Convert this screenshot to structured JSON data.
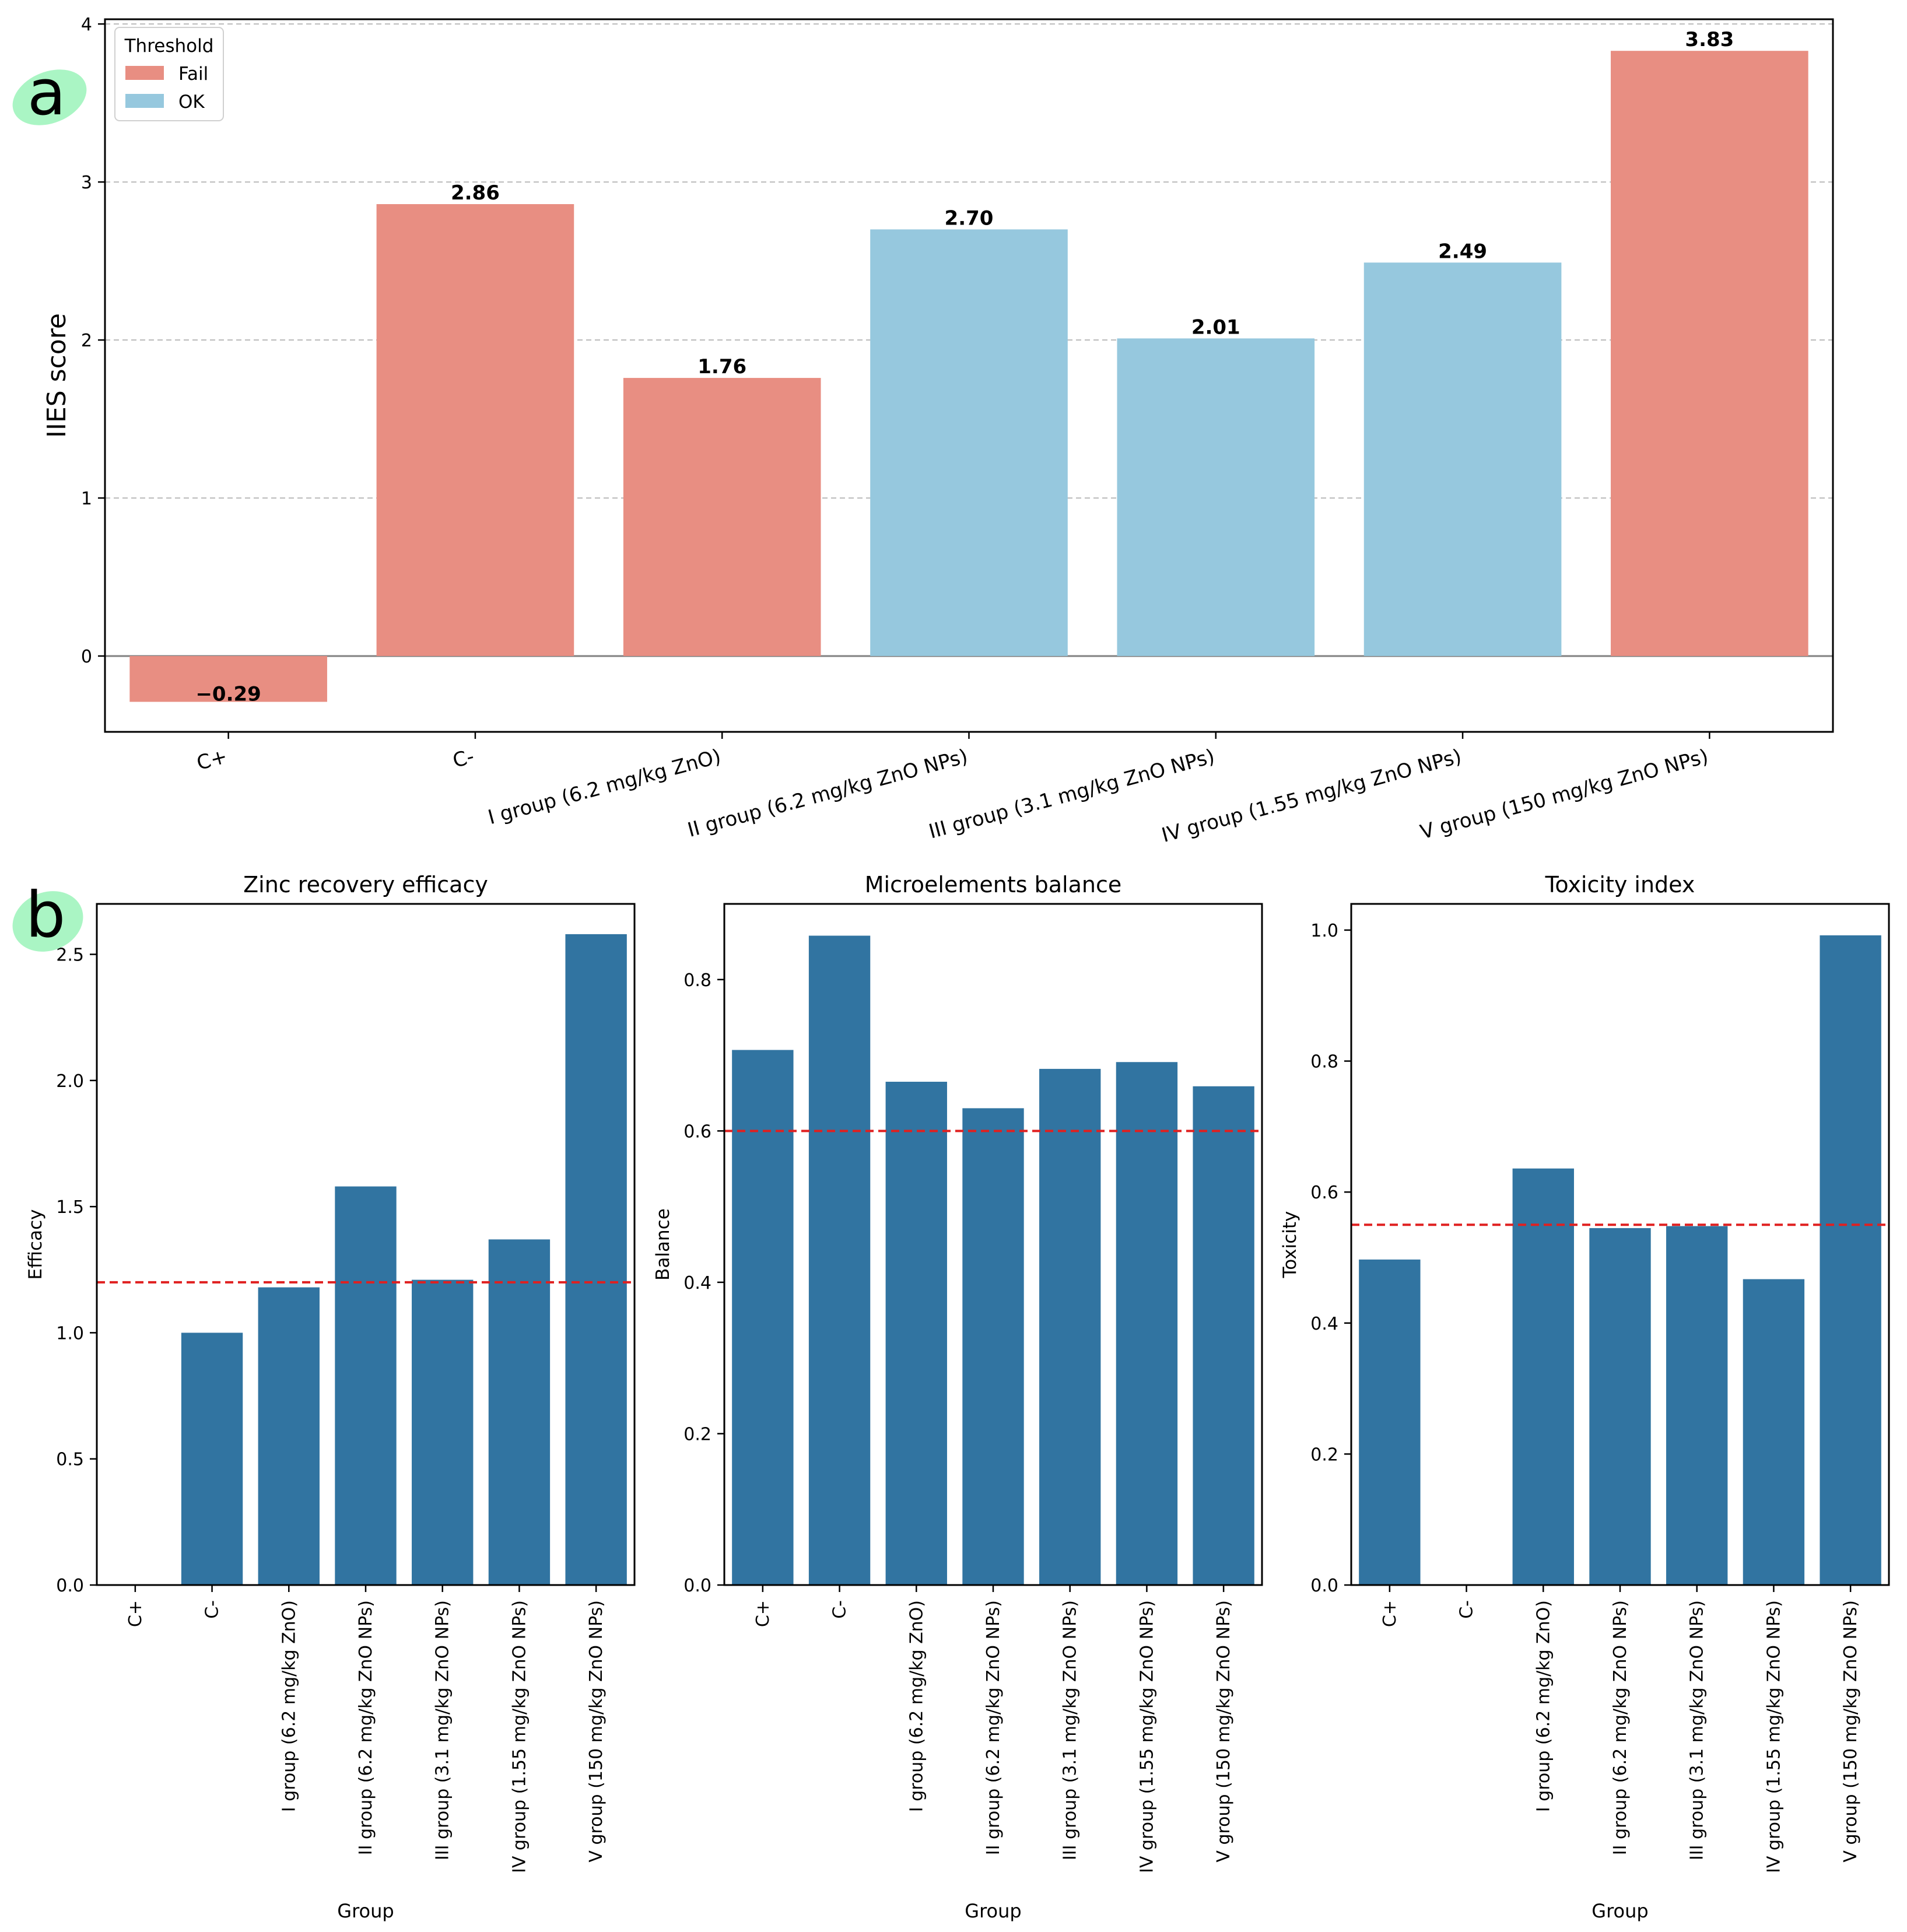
{
  "panel_a_letter": "a",
  "panel_b_letter": "b",
  "colors": {
    "fail": "#E88E82",
    "ok": "#96C8DE",
    "bar_b": "#3174A1",
    "threshold": "#E02020",
    "badge": "#AAF5C4",
    "grid": "#BBBBBB"
  },
  "chart_data": [
    {
      "type": "bar",
      "panel": "a",
      "title": "",
      "xlabel": "",
      "ylabel": "IIES score",
      "ylim": [
        -0.48,
        4.03
      ],
      "yticks": [
        0,
        1,
        2,
        3,
        4
      ],
      "grid": true,
      "categories": [
        "C+",
        "C-",
        "I group (6.2 mg/kg ZnO)",
        "II group (6.2 mg/kg ZnO NPs)",
        "III group (3.1 mg/kg ZnO NPs)",
        "IV group (1.55 mg/kg ZnO NPs)",
        "V group (150 mg/kg ZnO NPs)"
      ],
      "values": [
        -0.29,
        2.86,
        1.76,
        2.7,
        2.01,
        2.49,
        3.83
      ],
      "value_labels": [
        "−0.29",
        "2.86",
        "1.76",
        "2.70",
        "2.01",
        "2.49",
        "3.83"
      ],
      "status": [
        "Fail",
        "Fail",
        "Fail",
        "OK",
        "OK",
        "OK",
        "Fail"
      ],
      "legend": {
        "title": "Threshold",
        "placement": "top-left",
        "entries": [
          {
            "label": "Fail",
            "color": "#E88E82"
          },
          {
            "label": "OK",
            "color": "#96C8DE"
          }
        ]
      }
    },
    {
      "type": "bar",
      "panel": "b",
      "title": "Zinc recovery efficacy",
      "xlabel": "Group",
      "ylabel": "Efficacy",
      "ylim": [
        0,
        2.7
      ],
      "yticks": [
        0.0,
        0.5,
        1.0,
        1.5,
        2.0,
        2.5
      ],
      "ytick_labels": [
        "0.0",
        "0.5",
        "1.0",
        "1.5",
        "2.0",
        "2.5"
      ],
      "threshold": 1.2,
      "categories": [
        "C+",
        "C-",
        "I group (6.2 mg/kg ZnO)",
        "II group (6.2 mg/kg ZnO NPs)",
        "III group (3.1 mg/kg ZnO NPs)",
        "IV group (1.55 mg/kg ZnO NPs)",
        "V group (150 mg/kg ZnO NPs)"
      ],
      "values": [
        0.0,
        1.0,
        1.18,
        1.58,
        1.21,
        1.37,
        2.58
      ]
    },
    {
      "type": "bar",
      "panel": "b",
      "title": "Microelements balance",
      "xlabel": "Group",
      "ylabel": "Balance",
      "ylim": [
        0,
        0.9
      ],
      "yticks": [
        0.0,
        0.2,
        0.4,
        0.6,
        0.8
      ],
      "ytick_labels": [
        "0.0",
        "0.2",
        "0.4",
        "0.6",
        "0.8"
      ],
      "threshold": 0.6,
      "categories": [
        "C+",
        "C-",
        "I group (6.2 mg/kg ZnO)",
        "II group (6.2 mg/kg ZnO NPs)",
        "III group (3.1 mg/kg ZnO NPs)",
        "IV group (1.55 mg/kg ZnO NPs)",
        "V group (150 mg/kg ZnO NPs)"
      ],
      "values": [
        0.707,
        0.858,
        0.665,
        0.63,
        0.682,
        0.691,
        0.659
      ]
    },
    {
      "type": "bar",
      "panel": "b",
      "title": "Toxicity index",
      "xlabel": "Group",
      "ylabel": "Toxicity",
      "ylim": [
        0,
        1.04
      ],
      "yticks": [
        0.0,
        0.2,
        0.4,
        0.6,
        0.8,
        1.0
      ],
      "ytick_labels": [
        "0.0",
        "0.2",
        "0.4",
        "0.6",
        "0.8",
        "1.0"
      ],
      "threshold": 0.55,
      "categories": [
        "C+",
        "C-",
        "I group (6.2 mg/kg ZnO)",
        "II group (6.2 mg/kg ZnO NPs)",
        "III group (3.1 mg/kg ZnO NPs)",
        "IV group (1.55 mg/kg ZnO NPs)",
        "V group (150 mg/kg ZnO NPs)"
      ],
      "values": [
        0.497,
        0.0,
        0.636,
        0.545,
        0.548,
        0.467,
        0.992
      ]
    }
  ]
}
